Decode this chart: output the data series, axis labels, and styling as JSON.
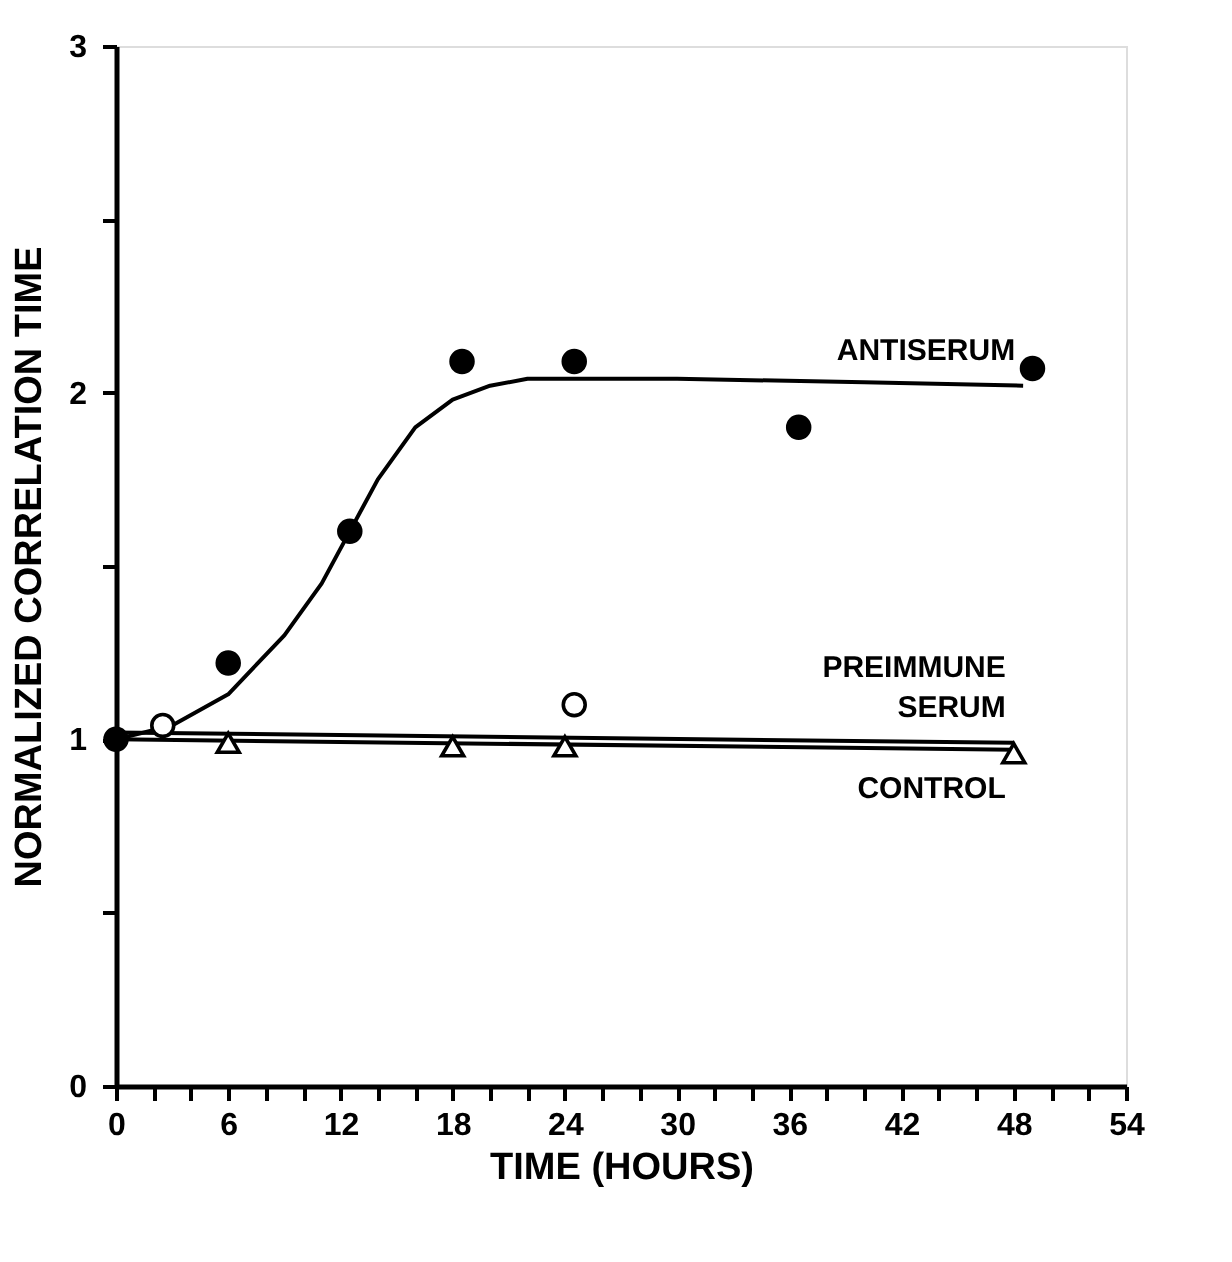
{
  "chart_data": {
    "type": "scatter",
    "xlabel": "TIME (HOURS)",
    "ylabel": "NORMALIZED CORRELATION TIME",
    "xlim": [
      0,
      54
    ],
    "ylim": [
      0,
      3
    ],
    "xticks": [
      0,
      {
        "value": 2,
        "label": null
      },
      {
        "value": 4,
        "label": null
      },
      6,
      {
        "value": 8,
        "label": null
      },
      {
        "value": 10,
        "label": null
      },
      12,
      {
        "value": 14,
        "label": null
      },
      {
        "value": 16,
        "label": null
      },
      18,
      {
        "value": 20,
        "label": null
      },
      {
        "value": 22,
        "label": null
      },
      24,
      {
        "value": 26,
        "label": null
      },
      {
        "value": 28,
        "label": null
      },
      30,
      {
        "value": 32,
        "label": null
      },
      {
        "value": 34,
        "label": null
      },
      36,
      {
        "value": 38,
        "label": null
      },
      {
        "value": 40,
        "label": null
      },
      42,
      {
        "value": 44,
        "label": null
      },
      {
        "value": 46,
        "label": null
      },
      48,
      {
        "value": 50,
        "label": null
      },
      {
        "value": 52,
        "label": null
      },
      54
    ],
    "yticks": [
      0,
      {
        "value": 0.5,
        "label": null
      },
      1,
      {
        "value": 1.5,
        "label": null
      },
      2,
      {
        "value": 2.5,
        "label": null
      },
      3
    ],
    "grid": false,
    "series": [
      {
        "type": "line",
        "name": "ANTISERUM",
        "color": "#000000",
        "marker": "none",
        "line_style": "solid",
        "x": [
          0,
          3,
          6,
          9,
          11,
          12.5,
          14,
          16,
          18,
          20,
          22,
          30,
          40,
          48.5
        ],
        "values": [
          1.0,
          1.04,
          1.13,
          1.3,
          1.45,
          1.6,
          1.75,
          1.9,
          1.98,
          2.02,
          2.04,
          2.04,
          2.03,
          2.02
        ]
      },
      {
        "type": "line",
        "name": "PREIMMUNE SERUM",
        "color": "#000000",
        "marker": "none",
        "line_style": "solid",
        "x": [
          0,
          48
        ],
        "values": [
          1.02,
          0.99
        ]
      },
      {
        "type": "line",
        "name": "CONTROL",
        "color": "#000000",
        "marker": "none",
        "line_style": "solid",
        "x": [
          0,
          48
        ],
        "values": [
          1.0,
          0.97
        ]
      },
      {
        "color": "#000000",
        "marker": "circle",
        "x": [
          0,
          6,
          12.5,
          18.5,
          24.5,
          36.5,
          49
        ],
        "values": [
          1.0,
          1.22,
          1.6,
          2.09,
          2.09,
          1.9,
          2.07
        ]
      },
      {
        "color": "#ffffff",
        "marker": "circle",
        "x": [
          2.5,
          24.5
        ],
        "values": [
          1.04,
          1.1
        ]
      },
      {
        "color": "#ffffff",
        "marker": "triangle",
        "x": [
          6,
          18,
          24,
          48
        ],
        "values": [
          0.99,
          0.98,
          0.98,
          0.96
        ]
      }
    ]
  }
}
